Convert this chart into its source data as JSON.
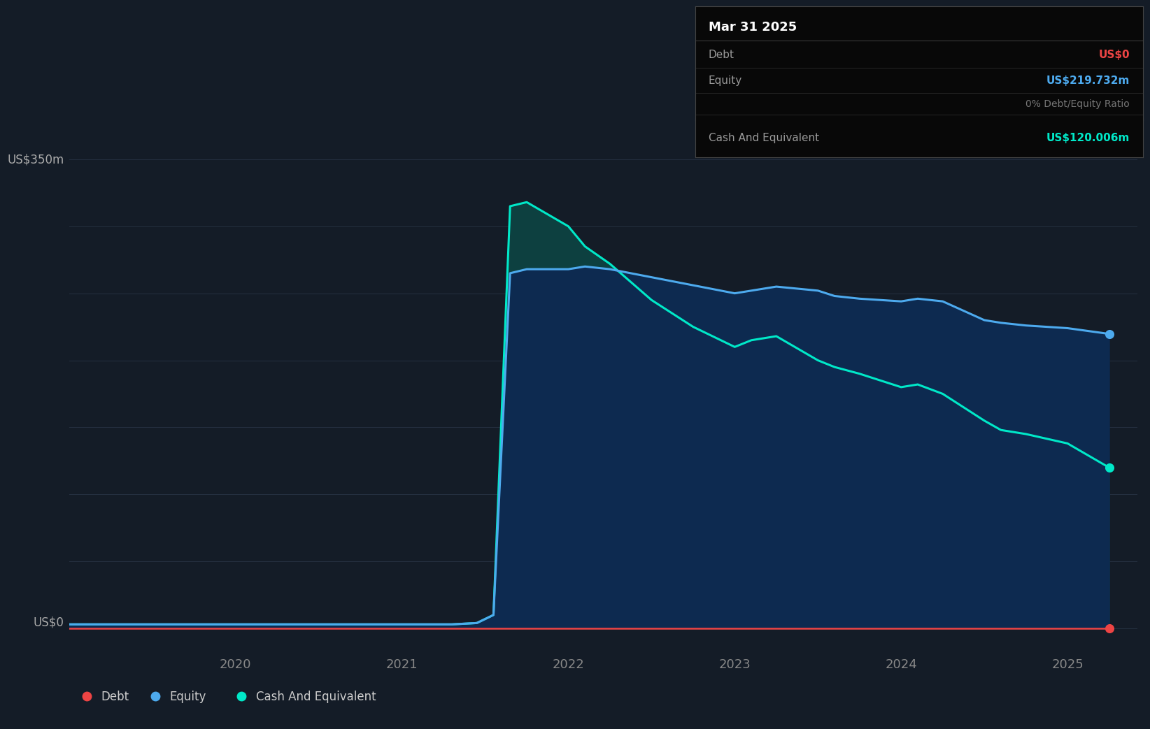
{
  "background_color": "#141C27",
  "plot_bg_color": "#141C27",
  "ylabel_top": "US$350m",
  "ylabel_bottom": "US$0",
  "x_ticks": [
    2020,
    2021,
    2022,
    2023,
    2024,
    2025
  ],
  "grid_color": "#253040",
  "equity_color": "#4DAAEE",
  "equity_fill_color": "#0d2a50",
  "cash_color": "#00E8C8",
  "cash_fill_color": "#0d4040",
  "debt_color": "#EE4444",
  "legend_items": [
    {
      "label": "Debt",
      "color": "#EE4444"
    },
    {
      "label": "Equity",
      "color": "#4DAAEE"
    },
    {
      "label": "Cash And Equivalent",
      "color": "#00E8C8"
    }
  ],
  "tooltip": {
    "date": "Mar 31 2025",
    "debt_label": "Debt",
    "debt_value": "US$0",
    "debt_color": "#EE4444",
    "equity_label": "Equity",
    "equity_value": "US$219.732m",
    "equity_color": "#4DAAEE",
    "ratio_text": "0% Debt/Equity Ratio",
    "ratio_color": "#777777",
    "cash_label": "Cash And Equivalent",
    "cash_value": "US$120.006m",
    "cash_color": "#00E8C8",
    "bg_color": "#080808",
    "border_color": "#444444"
  },
  "times": [
    2019.0,
    2019.25,
    2019.5,
    2019.75,
    2020.0,
    2020.25,
    2020.5,
    2020.75,
    2021.0,
    2021.15,
    2021.3,
    2021.45,
    2021.55,
    2021.65,
    2021.75,
    2022.0,
    2022.1,
    2022.25,
    2022.5,
    2022.75,
    2023.0,
    2023.1,
    2023.25,
    2023.5,
    2023.6,
    2023.75,
    2024.0,
    2024.1,
    2024.25,
    2024.5,
    2024.6,
    2024.75,
    2025.0,
    2025.25
  ],
  "equity": [
    3,
    3,
    3,
    3,
    3,
    3,
    3,
    3,
    3,
    3,
    3,
    4,
    10,
    265,
    268,
    268,
    270,
    268,
    262,
    256,
    250,
    252,
    255,
    252,
    248,
    246,
    244,
    246,
    244,
    230,
    228,
    226,
    224,
    219.732
  ],
  "cash": [
    3,
    3,
    3,
    3,
    3,
    3,
    3,
    3,
    3,
    3,
    3,
    4,
    10,
    315,
    318,
    300,
    285,
    272,
    245,
    225,
    210,
    215,
    218,
    200,
    195,
    190,
    180,
    182,
    175,
    155,
    148,
    145,
    138,
    120.006
  ],
  "debt": [
    0,
    0,
    0,
    0,
    0,
    0,
    0,
    0,
    0,
    0,
    0,
    0,
    0,
    0,
    0,
    0,
    0,
    0,
    0,
    0,
    0,
    0,
    0,
    0,
    0,
    0,
    0,
    0,
    0,
    0,
    0,
    0,
    0,
    0
  ]
}
